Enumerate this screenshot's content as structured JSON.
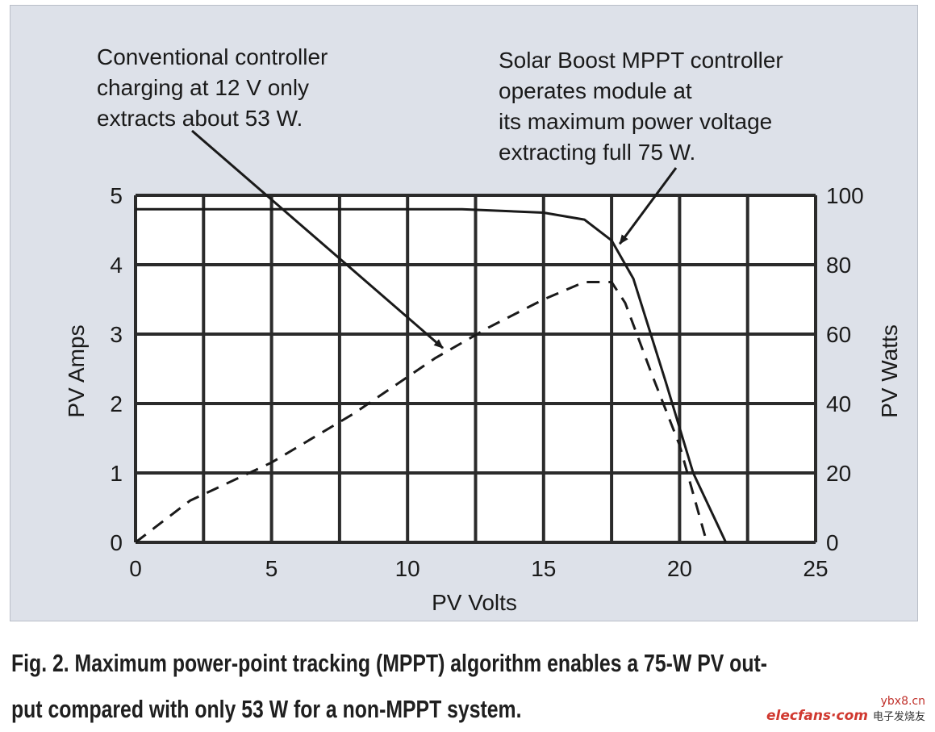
{
  "chart_data": {
    "type": "line",
    "xlabel": "PV Volts",
    "ylabel_left": "PV Amps",
    "ylabel_right": "PV Watts",
    "xlim": [
      0,
      25
    ],
    "ylim_left": [
      0,
      5
    ],
    "ylim_right": [
      0,
      100
    ],
    "x_ticks": [
      "0",
      "5",
      "10",
      "15",
      "20",
      "25"
    ],
    "y_left_ticks": [
      "0",
      "1",
      "2",
      "3",
      "4",
      "5"
    ],
    "y_right_ticks": [
      "0",
      "20",
      "40",
      "60",
      "80",
      "100"
    ],
    "grid": true,
    "series": [
      {
        "style": "solid",
        "axis": "left",
        "x": [
          0,
          12,
          15,
          16.5,
          17.5,
          18.3,
          19.5,
          20.5,
          21.7
        ],
        "y": [
          4.8,
          4.8,
          4.75,
          4.65,
          4.35,
          3.8,
          2.3,
          1.0,
          0
        ]
      },
      {
        "style": "dashed",
        "axis": "right",
        "x": [
          0,
          2,
          5,
          8,
          11,
          13,
          15,
          16.5,
          17.5,
          18,
          19,
          20,
          21
        ],
        "y": [
          0,
          12,
          23,
          37,
          53,
          62,
          70,
          75,
          75,
          69,
          48,
          28,
          0
        ]
      }
    ],
    "annotations": [
      {
        "lines": [
          "Conventional controller",
          "charging at 12 V only",
          "extracts about 53 W."
        ],
        "arrow_to": {
          "x": 11.3,
          "y": 56,
          "axis": "right"
        }
      },
      {
        "lines": [
          "Solar Boost MPPT controller",
          "operates module at",
          "its maximum power voltage",
          "extracting full 75 W."
        ],
        "arrow_to": {
          "x": 17.8,
          "y": 4.3,
          "axis": "left"
        }
      }
    ],
    "colors": {
      "panel": "#dde1e9",
      "plot": "#ffffff",
      "grid": "#2b2b2b",
      "line": "#1a1a1a",
      "text": "#1a1a1a"
    }
  },
  "caption": {
    "lines": [
      "Fig. 2. Maximum power-point tracking (MPPT) algorithm enables a 75-W PV out-",
      "put compared with only 53 W for a non-MPPT system."
    ]
  },
  "watermark": {
    "top": "ybx8.cn",
    "main": "elecfans·com",
    "sub": "电子发烧友"
  }
}
